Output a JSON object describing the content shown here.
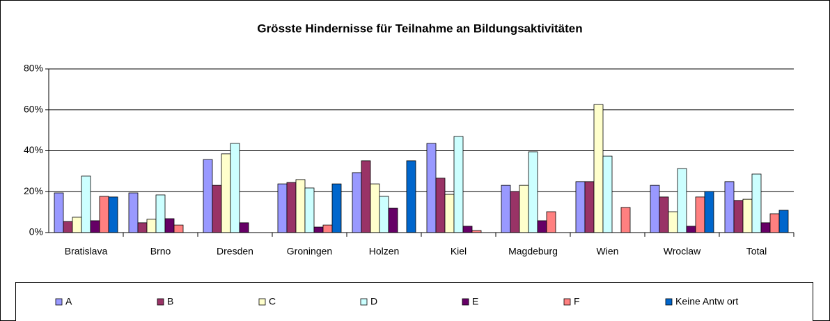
{
  "chart_data": {
    "type": "bar",
    "title": "Grösste Hindernisse für Teilnahme an Bildungsaktivitäten",
    "categories": [
      "Bratislava",
      "Brno",
      "Dresden",
      "Groningen",
      "Holzen",
      "Kiel",
      "Magdeburg",
      "Wien",
      "Wroclaw",
      "Total"
    ],
    "series": [
      {
        "name": "A",
        "color": "#9999ff",
        "values": [
          19.4,
          19.4,
          35.7,
          23.8,
          29.3,
          43.6,
          23.1,
          24.9,
          23.1,
          24.9
        ]
      },
      {
        "name": "B",
        "color": "#993366",
        "values": [
          5.4,
          4.8,
          23.1,
          24.5,
          35.1,
          26.6,
          20.1,
          24.9,
          17.4,
          15.7
        ]
      },
      {
        "name": "C",
        "color": "#ffffcc",
        "values": [
          7.5,
          6.5,
          38.5,
          25.9,
          23.8,
          18.7,
          23.1,
          62.6,
          10.2,
          16.3
        ]
      },
      {
        "name": "D",
        "color": "#ccffff",
        "values": [
          27.6,
          18.4,
          43.6,
          21.8,
          17.7,
          47.0,
          39.5,
          37.4,
          31.3,
          28.6
        ]
      },
      {
        "name": "E",
        "color": "#660066",
        "values": [
          5.8,
          6.8,
          4.8,
          2.7,
          11.9,
          3.1,
          5.8,
          0,
          3.1,
          4.8
        ]
      },
      {
        "name": "F",
        "color": "#ff8080",
        "values": [
          17.7,
          3.7,
          0,
          3.7,
          0,
          1.0,
          10.2,
          12.3,
          17.4,
          9.2
        ]
      },
      {
        "name": "Keine Antw ort",
        "color": "#0066cc",
        "values": [
          17.4,
          0,
          0,
          23.8,
          35.1,
          0,
          0,
          0,
          20.1,
          10.9
        ]
      }
    ],
    "ylim": [
      0,
      80
    ],
    "yticks": [
      {
        "value": 0,
        "label": "0%"
      },
      {
        "value": 20,
        "label": "20%"
      },
      {
        "value": 40,
        "label": "40%"
      },
      {
        "value": 60,
        "label": "60%"
      },
      {
        "value": 80,
        "label": "80%"
      }
    ],
    "grid": true
  }
}
